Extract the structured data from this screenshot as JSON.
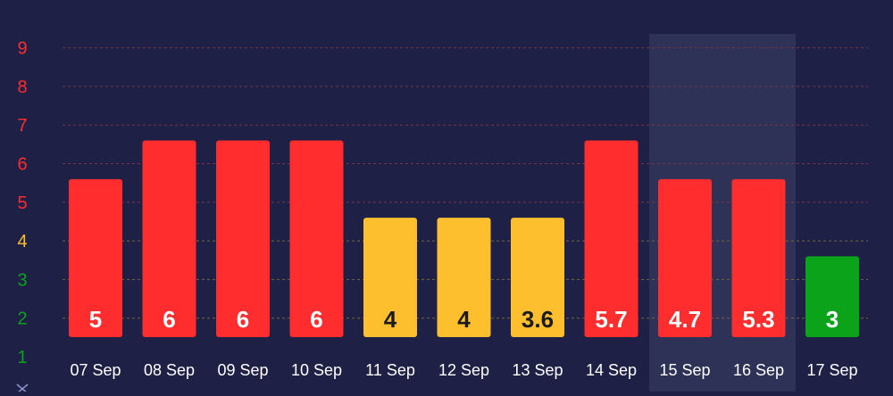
{
  "chart_data": {
    "type": "bar",
    "categories": [
      "07 Sep",
      "08 Sep",
      "09 Sep",
      "10 Sep",
      "11 Sep",
      "12 Sep",
      "13 Sep",
      "14 Sep",
      "15 Sep",
      "16 Sep",
      "17 Sep"
    ],
    "values": [
      5,
      6,
      6,
      6,
      4,
      4,
      3.6,
      5.7,
      4.7,
      5.3,
      3
    ],
    "value_labels": [
      "5",
      "6",
      "6",
      "6",
      "4",
      "4",
      "3.6",
      "5.7",
      "4.7",
      "5.3",
      "3"
    ],
    "bar_levels": [
      5.6,
      6.6,
      6.6,
      6.6,
      4.6,
      4.6,
      4.6,
      6.6,
      5.6,
      5.6,
      3.6
    ],
    "highlighted_category": "15 Sep",
    "y_ticks": [
      {
        "label": "9",
        "value": 9,
        "color": "#ff2d2d"
      },
      {
        "label": "8",
        "value": 8,
        "color": "#ff2d2d"
      },
      {
        "label": "7",
        "value": 7,
        "color": "#ff2d2d"
      },
      {
        "label": "6",
        "value": 6,
        "color": "#ff2d2d"
      },
      {
        "label": "5",
        "value": 5,
        "color": "#ff2d2d"
      },
      {
        "label": "4",
        "value": 4,
        "color": "#fdbf2d"
      },
      {
        "label": "3",
        "value": 3,
        "color": "#0aa31a"
      },
      {
        "label": "2",
        "value": 2,
        "color": "#0aa31a"
      },
      {
        "label": "1",
        "value": 1,
        "color": "#0aa31a"
      }
    ],
    "ylim": [
      1,
      9
    ],
    "grid": true,
    "title": "",
    "xlabel": "",
    "ylabel": "",
    "level_colors": {
      "high": "#ff2d2d",
      "moderate": "#fdbf2d",
      "low": "#0aa31a"
    },
    "colors": {
      "background": "#1e2046",
      "grid_high": "#7a3447",
      "grid_moderate": "#7a6440",
      "highlight_band": "#2f3257",
      "dark_label": "#1b1b1b",
      "light_label": "#ffffff"
    },
    "bottom_icon": "close-icon"
  }
}
